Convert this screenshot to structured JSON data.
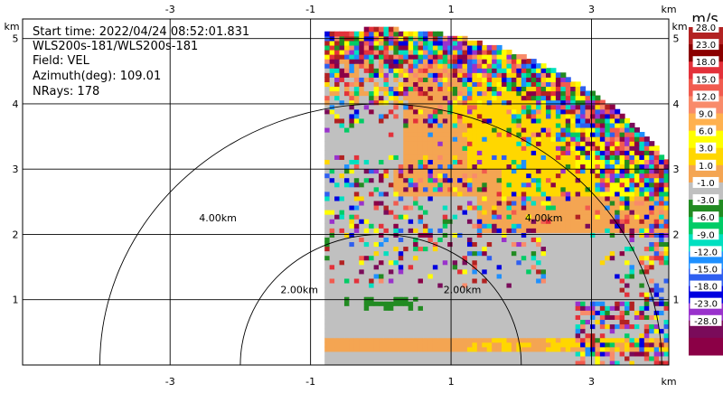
{
  "chart_data": {
    "type": "heatmap",
    "info": {
      "start_time": "Start time: 2022/04/24 08:52:01.831",
      "instrument": "WLS200s-181/WLS200s-181",
      "field": "Field: VEL",
      "azimuth": "Azimuth(deg): 109.01",
      "nrays": "NRays: 178"
    },
    "x_axis": {
      "unit": "km",
      "range": [
        -5.1,
        4.1
      ],
      "ticks": [
        -3,
        -1,
        1,
        3
      ],
      "tick_labels": [
        "-3",
        "-1",
        "1",
        "3"
      ]
    },
    "y_axis": {
      "unit": "km",
      "range": [
        0,
        5.3
      ],
      "ticks": [
        1,
        2,
        3,
        4,
        5
      ],
      "tick_labels": [
        "1",
        "2",
        "3",
        "4",
        "5"
      ]
    },
    "range_rings": [
      {
        "radius_km": 2,
        "label": "2.00km"
      },
      {
        "radius_km": 4,
        "label": "4.00km"
      }
    ],
    "sector": {
      "origin_x_km": 0,
      "origin_y_km": 0,
      "start_x_km": -0.8,
      "max_range_km": 5.15
    },
    "grid": true,
    "colorbar": {
      "unit": "m/s",
      "labels": [
        "28.0",
        "23.0",
        "18.0",
        "15.0",
        "12.0",
        "9.0",
        "6.0",
        "3.0",
        "1.0",
        "-1.0",
        "-3.0",
        "-6.0",
        "-9.0",
        "-12.0",
        "-15.0",
        "-18.0",
        "-23.0",
        "-28.0"
      ],
      "colors": [
        "#b22222",
        "#8b0000",
        "#e3313a",
        "#f15b4f",
        "#f98b6a",
        "#ffb14f",
        "#ffff00",
        "#ffd700",
        "#f4a552",
        "#c0c0c0",
        "#228b22",
        "#00cc66",
        "#00e0c0",
        "#1e90ff",
        "#2f5ff0",
        "#0000e0",
        "#9932cc",
        "#7a0b5a",
        "#8b0046"
      ]
    }
  }
}
